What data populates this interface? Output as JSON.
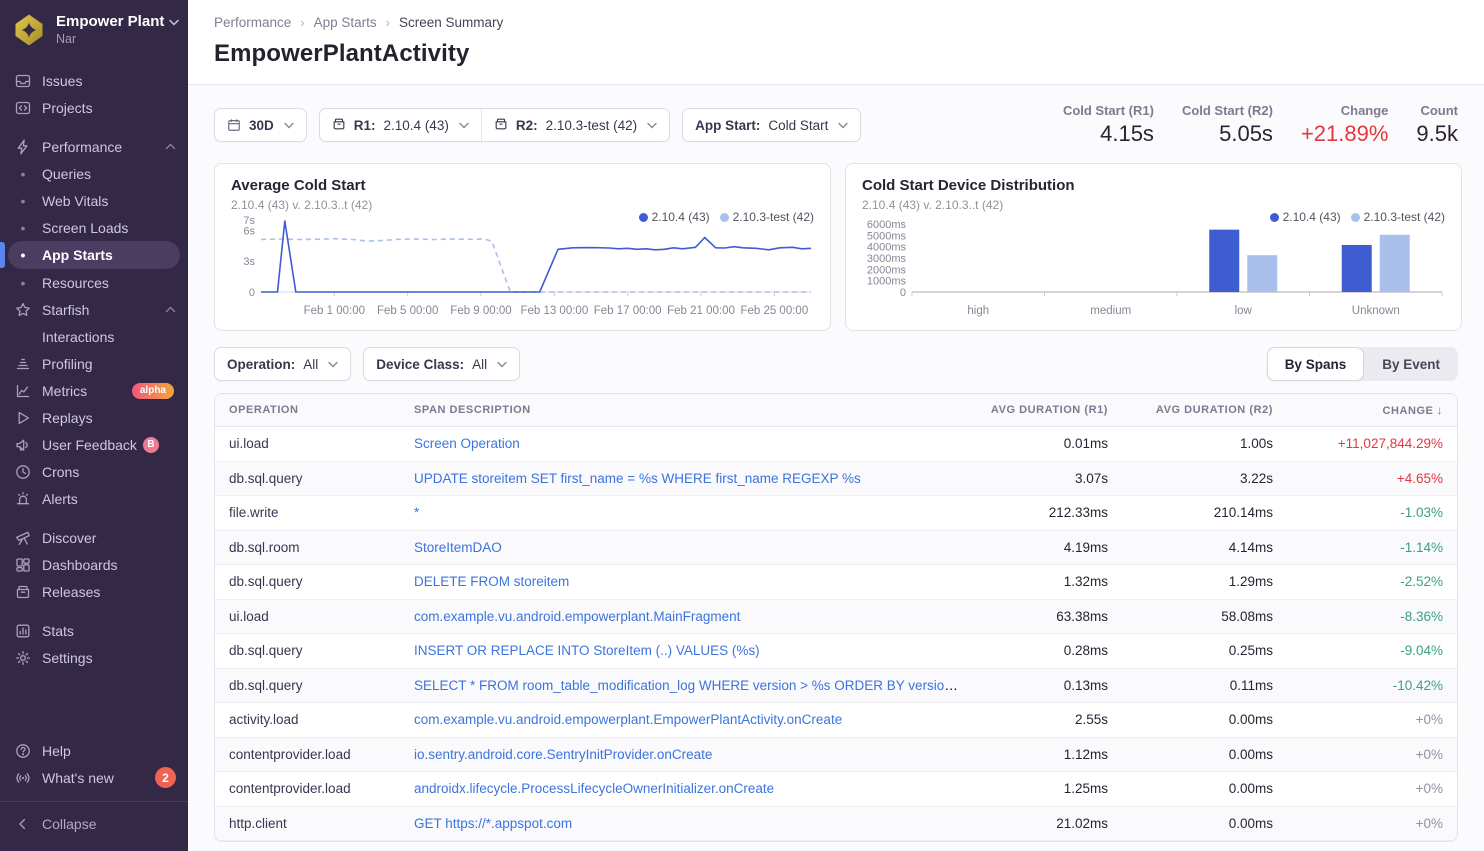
{
  "sidebar": {
    "org": {
      "name": "Empower Plant",
      "subtitle": "Nar"
    },
    "sections": [
      {
        "items": [
          {
            "label": "Issues",
            "icon": "issues"
          },
          {
            "label": "Projects",
            "icon": "projects"
          }
        ]
      },
      {
        "items": [
          {
            "label": "Performance",
            "icon": "performance",
            "chevron": "up"
          },
          {
            "label": "Queries",
            "sub": true
          },
          {
            "label": "Web Vitals",
            "sub": true
          },
          {
            "label": "Screen Loads",
            "sub": true
          },
          {
            "label": "App Starts",
            "sub": true,
            "active": true
          },
          {
            "label": "Resources",
            "sub": true
          },
          {
            "label": "Starfish",
            "icon": "starfish",
            "chevron": "up"
          },
          {
            "label": "Interactions",
            "sub": true,
            "nobullet": true
          },
          {
            "label": "Profiling",
            "icon": "profiling"
          },
          {
            "label": "Metrics",
            "icon": "metrics",
            "badge": {
              "type": "alpha",
              "text": "alpha"
            }
          },
          {
            "label": "Replays",
            "icon": "replays"
          },
          {
            "label": "User Feedback",
            "icon": "user-feedback",
            "badge": {
              "type": "letter",
              "text": "B"
            }
          },
          {
            "label": "Crons",
            "icon": "crons"
          },
          {
            "label": "Alerts",
            "icon": "alerts"
          }
        ]
      },
      {
        "items": [
          {
            "label": "Discover",
            "icon": "discover"
          },
          {
            "label": "Dashboards",
            "icon": "dashboards"
          },
          {
            "label": "Releases",
            "icon": "releases"
          }
        ]
      },
      {
        "items": [
          {
            "label": "Stats",
            "icon": "stats"
          },
          {
            "label": "Settings",
            "icon": "settings"
          }
        ]
      }
    ],
    "footer": [
      {
        "label": "Help",
        "icon": "help"
      },
      {
        "label": "What's new",
        "icon": "whats-new",
        "badge": {
          "type": "count",
          "text": "2"
        }
      }
    ],
    "collapse": {
      "label": "Collapse",
      "icon": "collapse"
    }
  },
  "breadcrumb": {
    "items": [
      "Performance",
      "App Starts",
      "Screen Summary"
    ],
    "separator": "›"
  },
  "page": {
    "title": "EmpowerPlantActivity"
  },
  "filters": {
    "date": {
      "label": "30D"
    },
    "r1": {
      "label": "R1:",
      "value": "2.10.4 (43)"
    },
    "r2": {
      "label": "R2:",
      "value": "2.10.3-test (42)"
    },
    "app_start": {
      "label": "App Start:",
      "value": "Cold Start"
    },
    "operation": {
      "label": "Operation:",
      "value": "All"
    },
    "device_class": {
      "label": "Device Class:",
      "value": "All"
    }
  },
  "stats": [
    {
      "label": "Cold Start (R1)",
      "value": "4.15s",
      "color": "default"
    },
    {
      "label": "Cold Start (R2)",
      "value": "5.05s",
      "color": "default"
    },
    {
      "label": "Change",
      "value": "+21.89%",
      "color": "red"
    },
    {
      "label": "Count",
      "value": "9.5k",
      "color": "default"
    }
  ],
  "chart_data": [
    {
      "type": "line",
      "title": "Average Cold Start",
      "subtitle": "2.10.4 (43) v. 2.10.3..t (42)",
      "legend": [
        "2.10.4 (43)",
        "2.10.3-test (42)"
      ],
      "colors": [
        "#3e5dd1",
        "#a9bfec"
      ],
      "ylabel_unit": "s",
      "ylim": [
        0,
        7
      ],
      "yticks": [
        {
          "v": 7,
          "label": "7s"
        },
        {
          "v": 6,
          "label": "6s"
        },
        {
          "v": 3,
          "label": "3s"
        },
        {
          "v": 0,
          "label": "0"
        }
      ],
      "x_domain_days": [
        0,
        30
      ],
      "xticks": [
        {
          "day": 4,
          "label": "Feb 1 00:00"
        },
        {
          "day": 8,
          "label": "Feb 5 00:00"
        },
        {
          "day": 12,
          "label": "Feb 9 00:00"
        },
        {
          "day": 16,
          "label": "Feb 13 00:00"
        },
        {
          "day": 20,
          "label": "Feb 17 00:00"
        },
        {
          "day": 24,
          "label": "Feb 21 00:00"
        },
        {
          "day": 28,
          "label": "Feb 25 00:00"
        }
      ],
      "series": [
        {
          "name": "2.10.4 (43)",
          "style": "solid",
          "points": [
            [
              0,
              0
            ],
            [
              0.9,
              0
            ],
            [
              1.3,
              6.9
            ],
            [
              1.9,
              0
            ],
            [
              15.2,
              0
            ],
            [
              16.2,
              4.15
            ],
            [
              17,
              4.3
            ],
            [
              18,
              4.32
            ],
            [
              19,
              4.28
            ],
            [
              19.5,
              4.2
            ],
            [
              20,
              4.25
            ],
            [
              20.5,
              4.15
            ],
            [
              21,
              4.2
            ],
            [
              21.5,
              4.1
            ],
            [
              22,
              4.15
            ],
            [
              22.5,
              4.3
            ],
            [
              23,
              4.2
            ],
            [
              23.7,
              4.35
            ],
            [
              24.2,
              5.3
            ],
            [
              24.8,
              4.3
            ],
            [
              25.3,
              4.28
            ],
            [
              25.8,
              4.4
            ],
            [
              26.3,
              4.3
            ],
            [
              27,
              4.25
            ],
            [
              27.7,
              4.1
            ],
            [
              28.3,
              4.3
            ],
            [
              29,
              4.35
            ],
            [
              29.5,
              4.2
            ],
            [
              30,
              4.25
            ]
          ]
        },
        {
          "name": "2.10.3-test (42)",
          "style": "dashed",
          "points": [
            [
              0,
              5.1
            ],
            [
              1,
              5.15
            ],
            [
              2,
              5.1
            ],
            [
              3,
              5.12
            ],
            [
              4,
              5.18
            ],
            [
              5,
              5.1
            ],
            [
              5.8,
              4.95
            ],
            [
              6.5,
              5.0
            ],
            [
              7.5,
              5.12
            ],
            [
              8.5,
              5.15
            ],
            [
              9.5,
              5.1
            ],
            [
              10.5,
              5.15
            ],
            [
              11.5,
              5.12
            ],
            [
              12.2,
              5.15
            ],
            [
              12.6,
              4.9
            ],
            [
              13.6,
              0
            ],
            [
              30,
              0
            ]
          ]
        }
      ]
    },
    {
      "type": "bar",
      "title": "Cold Start Device Distribution",
      "subtitle": "2.10.4 (43) v. 2.10.3..t (42)",
      "legend": [
        "2.10.4 (43)",
        "2.10.3-test (42)"
      ],
      "colors": [
        "#3e5dd1",
        "#a9bfec"
      ],
      "ylim": [
        0,
        6000
      ],
      "yticks": [
        {
          "v": 6000,
          "label": "6000ms"
        },
        {
          "v": 5000,
          "label": "5000ms"
        },
        {
          "v": 4000,
          "label": "4000ms"
        },
        {
          "v": 3000,
          "label": "3000ms"
        },
        {
          "v": 2000,
          "label": "2000ms"
        },
        {
          "v": 1000,
          "label": "1000ms"
        },
        {
          "v": 0,
          "label": "0"
        }
      ],
      "categories": [
        "high",
        "medium",
        "low",
        "Unknown"
      ],
      "series": [
        {
          "name": "2.10.4 (43)",
          "values": [
            0,
            0,
            5500,
            4150
          ]
        },
        {
          "name": "2.10.3-test (42)",
          "values": [
            0,
            0,
            3250,
            5050
          ]
        }
      ]
    }
  ],
  "toggle": {
    "options": [
      "By Spans",
      "By Event"
    ],
    "active": "By Spans"
  },
  "table": {
    "headers": [
      "OPERATION",
      "SPAN DESCRIPTION",
      "AVG DURATION (R1)",
      "AVG DURATION (R2)",
      "CHANGE"
    ],
    "sort": {
      "column": "CHANGE",
      "arrow": "↓"
    },
    "rows": [
      {
        "op": "ui.load",
        "desc": "Screen Operation",
        "r1": "0.01ms",
        "r2": "1.00s",
        "change": "+11,027,844.29%",
        "dir": "up"
      },
      {
        "op": "db.sql.query",
        "desc": "UPDATE storeitem SET first_name = %s WHERE first_name REGEXP %s",
        "r1": "3.07s",
        "r2": "3.22s",
        "change": "+4.65%",
        "dir": "up"
      },
      {
        "op": "file.write",
        "desc": "*",
        "r1": "212.33ms",
        "r2": "210.14ms",
        "change": "-1.03%",
        "dir": "down"
      },
      {
        "op": "db.sql.room",
        "desc": "StoreItemDAO",
        "r1": "4.19ms",
        "r2": "4.14ms",
        "change": "-1.14%",
        "dir": "down"
      },
      {
        "op": "db.sql.query",
        "desc": "DELETE FROM storeitem",
        "r1": "1.32ms",
        "r2": "1.29ms",
        "change": "-2.52%",
        "dir": "down"
      },
      {
        "op": "ui.load",
        "desc": "com.example.vu.android.empowerplant.MainFragment",
        "r1": "63.38ms",
        "r2": "58.08ms",
        "change": "-8.36%",
        "dir": "down"
      },
      {
        "op": "db.sql.query",
        "desc": "INSERT OR REPLACE INTO StoreItem (..) VALUES (%s)",
        "r1": "0.28ms",
        "r2": "0.25ms",
        "change": "-9.04%",
        "dir": "down"
      },
      {
        "op": "db.sql.query",
        "desc": "SELECT * FROM room_table_modification_log WHERE version > %s ORDER BY version ASC",
        "r1": "0.13ms",
        "r2": "0.11ms",
        "change": "-10.42%",
        "dir": "down"
      },
      {
        "op": "activity.load",
        "desc": "com.example.vu.android.empowerplant.EmpowerPlantActivity.onCreate",
        "r1": "2.55s",
        "r2": "0.00ms",
        "change": "+0%",
        "dir": "zero"
      },
      {
        "op": "contentprovider.load",
        "desc": "io.sentry.android.core.SentryInitProvider.onCreate",
        "r1": "1.12ms",
        "r2": "0.00ms",
        "change": "+0%",
        "dir": "zero"
      },
      {
        "op": "contentprovider.load",
        "desc": "androidx.lifecycle.ProcessLifecycleOwnerInitializer.onCreate",
        "r1": "1.25ms",
        "r2": "0.00ms",
        "change": "+0%",
        "dir": "zero"
      },
      {
        "op": "http.client",
        "desc": "GET https://*.appspot.com",
        "r1": "21.02ms",
        "r2": "0.00ms",
        "change": "+0%",
        "dir": "zero"
      }
    ]
  },
  "colors": {
    "link_blue": "#3c74dd",
    "series_primary": "#3e5dd1",
    "series_secondary": "#a9bfec",
    "change_red": "#e2383f",
    "change_green": "#3ca084",
    "change_neutral": "#978fa5",
    "sidebar_bg": "#332846",
    "active_indicator": "#5b86f2"
  }
}
